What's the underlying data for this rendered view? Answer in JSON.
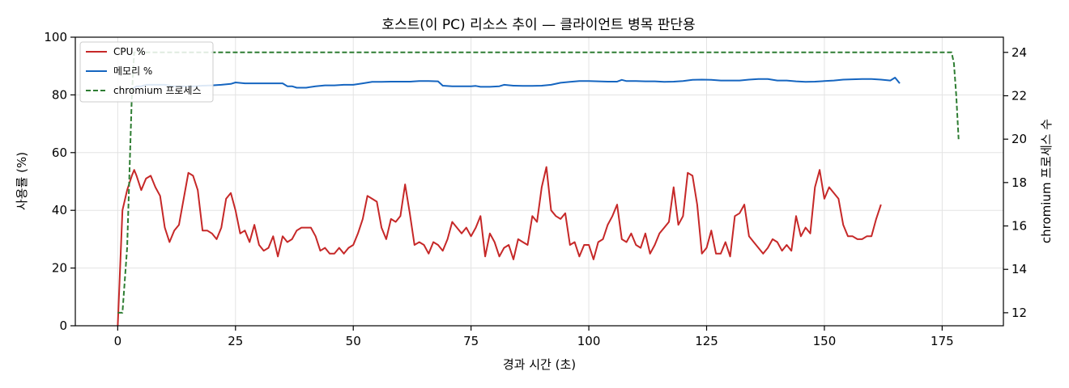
{
  "chart_data": {
    "type": "line",
    "title": "호스트(이 PC) 리소스 추이 — 클라이언트 병목 판단용",
    "xlabel": "경과 시간 (초)",
    "ylabel": "사용률 (%)",
    "ylabel_right": "chromium 프로세스 수",
    "xlim": [
      -9,
      188
    ],
    "ylim": [
      0,
      100
    ],
    "ylim_right": [
      11.4,
      24.7
    ],
    "x_ticks": [
      0,
      25,
      50,
      75,
      100,
      125,
      150,
      175
    ],
    "y_ticks": [
      0,
      20,
      40,
      60,
      80,
      100
    ],
    "y_ticks_right": [
      12,
      14,
      16,
      18,
      20,
      22,
      24
    ],
    "grid": true,
    "legend_position": "top-left",
    "colors": {
      "cpu": "#c62828",
      "memory": "#1565c0",
      "chromium": "#2e7d32"
    },
    "series": [
      {
        "name": "CPU %",
        "axis": "left",
        "style": "solid",
        "points": [
          [
            0,
            0
          ],
          [
            1,
            40
          ],
          [
            2,
            47
          ],
          [
            3,
            52
          ],
          [
            3.5,
            54
          ],
          [
            4,
            52
          ],
          [
            5,
            47
          ],
          [
            6,
            51
          ],
          [
            7,
            52
          ],
          [
            8,
            48
          ],
          [
            9,
            45
          ],
          [
            10,
            34
          ],
          [
            11,
            29
          ],
          [
            12,
            33
          ],
          [
            13,
            35
          ],
          [
            14,
            44
          ],
          [
            15,
            53
          ],
          [
            16,
            52
          ],
          [
            17,
            47
          ],
          [
            18,
            33
          ],
          [
            19,
            33
          ],
          [
            20,
            32
          ],
          [
            21,
            30
          ],
          [
            22,
            34
          ],
          [
            23,
            44
          ],
          [
            24,
            46
          ],
          [
            25,
            40
          ],
          [
            26,
            32
          ],
          [
            27,
            33
          ],
          [
            28,
            29
          ],
          [
            29,
            35
          ],
          [
            30,
            28
          ],
          [
            31,
            26
          ],
          [
            32,
            27
          ],
          [
            33,
            31
          ],
          [
            34,
            24
          ],
          [
            35,
            31
          ],
          [
            36,
            29
          ],
          [
            37,
            30
          ],
          [
            38,
            33
          ],
          [
            39,
            34
          ],
          [
            40,
            34
          ],
          [
            41,
            34
          ],
          [
            42,
            31
          ],
          [
            43,
            26
          ],
          [
            44,
            27
          ],
          [
            45,
            25
          ],
          [
            46,
            25
          ],
          [
            47,
            27
          ],
          [
            48,
            25
          ],
          [
            49,
            27
          ],
          [
            50,
            28
          ],
          [
            51,
            32
          ],
          [
            52,
            37
          ],
          [
            53,
            45
          ],
          [
            54,
            44
          ],
          [
            55,
            43
          ],
          [
            56,
            34
          ],
          [
            57,
            30
          ],
          [
            58,
            37
          ],
          [
            59,
            36
          ],
          [
            60,
            38
          ],
          [
            61,
            49
          ],
          [
            62,
            39
          ],
          [
            63,
            28
          ],
          [
            64,
            29
          ],
          [
            65,
            28
          ],
          [
            66,
            25
          ],
          [
            67,
            29
          ],
          [
            68,
            28
          ],
          [
            69,
            26
          ],
          [
            70,
            30
          ],
          [
            71,
            36
          ],
          [
            72,
            34
          ],
          [
            73,
            32
          ],
          [
            74,
            34
          ],
          [
            75,
            31
          ],
          [
            76,
            34
          ],
          [
            77,
            38
          ],
          [
            78,
            24
          ],
          [
            79,
            32
          ],
          [
            80,
            29
          ],
          [
            81,
            24
          ],
          [
            82,
            27
          ],
          [
            83,
            28
          ],
          [
            84,
            23
          ],
          [
            85,
            30
          ],
          [
            86,
            29
          ],
          [
            87,
            28
          ],
          [
            88,
            38
          ],
          [
            89,
            36
          ],
          [
            90,
            48
          ],
          [
            91,
            55
          ],
          [
            92,
            40
          ],
          [
            93,
            38
          ],
          [
            94,
            37
          ],
          [
            95,
            39
          ],
          [
            96,
            28
          ],
          [
            97,
            29
          ],
          [
            98,
            24
          ],
          [
            99,
            28
          ],
          [
            100,
            28
          ],
          [
            101,
            23
          ],
          [
            102,
            29
          ],
          [
            103,
            30
          ],
          [
            104,
            35
          ],
          [
            105,
            38
          ],
          [
            106,
            42
          ],
          [
            107,
            30
          ],
          [
            108,
            29
          ],
          [
            109,
            32
          ],
          [
            110,
            28
          ],
          [
            111,
            27
          ],
          [
            112,
            32
          ],
          [
            113,
            25
          ],
          [
            114,
            28
          ],
          [
            115,
            32
          ],
          [
            116,
            34
          ],
          [
            117,
            36
          ],
          [
            118,
            48
          ],
          [
            119,
            35
          ],
          [
            120,
            38
          ],
          [
            121,
            53
          ],
          [
            122,
            52
          ],
          [
            123,
            42
          ],
          [
            124,
            25
          ],
          [
            125,
            27
          ],
          [
            126,
            33
          ],
          [
            127,
            25
          ],
          [
            128,
            25
          ],
          [
            129,
            29
          ],
          [
            130,
            24
          ],
          [
            131,
            38
          ],
          [
            132,
            39
          ],
          [
            133,
            42
          ],
          [
            134,
            31
          ],
          [
            135,
            29
          ],
          [
            136,
            27
          ],
          [
            137,
            25
          ],
          [
            138,
            27
          ],
          [
            139,
            30
          ],
          [
            140,
            29
          ],
          [
            141,
            26
          ],
          [
            142,
            28
          ],
          [
            143,
            26
          ],
          [
            144,
            38
          ],
          [
            145,
            31
          ],
          [
            146,
            34
          ],
          [
            147,
            32
          ],
          [
            148,
            48
          ],
          [
            149,
            54
          ],
          [
            150,
            44
          ],
          [
            151,
            48
          ],
          [
            152,
            46
          ],
          [
            153,
            44
          ],
          [
            154,
            35
          ],
          [
            155,
            31
          ],
          [
            156,
            31
          ],
          [
            157,
            30
          ],
          [
            158,
            30
          ],
          [
            159,
            31
          ],
          [
            160,
            31
          ],
          [
            161,
            37
          ],
          [
            162,
            42
          ]
        ]
      },
      {
        "name": "메모리 %",
        "axis": "left",
        "style": "solid",
        "points": [
          [
            3,
            82
          ],
          [
            4,
            83
          ],
          [
            5,
            83
          ],
          [
            6,
            83.5
          ],
          [
            8,
            83.5
          ],
          [
            10,
            83.5
          ],
          [
            12,
            83
          ],
          [
            14,
            83
          ],
          [
            16,
            83
          ],
          [
            18,
            83.2
          ],
          [
            20,
            83.3
          ],
          [
            22,
            83.5
          ],
          [
            24,
            83.8
          ],
          [
            25,
            84.3
          ],
          [
            27,
            84
          ],
          [
            29,
            84
          ],
          [
            31,
            84
          ],
          [
            33,
            84
          ],
          [
            35,
            84
          ],
          [
            36,
            83
          ],
          [
            37,
            83
          ],
          [
            38,
            82.5
          ],
          [
            40,
            82.5
          ],
          [
            42,
            83
          ],
          [
            44,
            83.3
          ],
          [
            46,
            83.3
          ],
          [
            48,
            83.5
          ],
          [
            50,
            83.5
          ],
          [
            52,
            84
          ],
          [
            54,
            84.5
          ],
          [
            56,
            84.5
          ],
          [
            58,
            84.6
          ],
          [
            60,
            84.6
          ],
          [
            62,
            84.6
          ],
          [
            64,
            84.8
          ],
          [
            66,
            84.8
          ],
          [
            68,
            84.7
          ],
          [
            69,
            83.2
          ],
          [
            71,
            83
          ],
          [
            73,
            83
          ],
          [
            75,
            83
          ],
          [
            76,
            83.1
          ],
          [
            77,
            82.8
          ],
          [
            79,
            82.8
          ],
          [
            81,
            83
          ],
          [
            82,
            83.5
          ],
          [
            84,
            83.2
          ],
          [
            86,
            83.1
          ],
          [
            88,
            83.1
          ],
          [
            90,
            83.2
          ],
          [
            92,
            83.5
          ],
          [
            94,
            84.2
          ],
          [
            96,
            84.5
          ],
          [
            98,
            84.8
          ],
          [
            100,
            84.8
          ],
          [
            102,
            84.7
          ],
          [
            104,
            84.6
          ],
          [
            106,
            84.6
          ],
          [
            107,
            85.2
          ],
          [
            108,
            84.8
          ],
          [
            110,
            84.8
          ],
          [
            112,
            84.7
          ],
          [
            114,
            84.7
          ],
          [
            116,
            84.5
          ],
          [
            118,
            84.6
          ],
          [
            120,
            84.8
          ],
          [
            122,
            85.2
          ],
          [
            124,
            85.3
          ],
          [
            126,
            85.2
          ],
          [
            128,
            85
          ],
          [
            130,
            85
          ],
          [
            132,
            85
          ],
          [
            134,
            85.3
          ],
          [
            136,
            85.5
          ],
          [
            138,
            85.5
          ],
          [
            140,
            85
          ],
          [
            142,
            85
          ],
          [
            144,
            84.7
          ],
          [
            146,
            84.5
          ],
          [
            148,
            84.6
          ],
          [
            150,
            84.8
          ],
          [
            152,
            85
          ],
          [
            154,
            85.3
          ],
          [
            156,
            85.4
          ],
          [
            158,
            85.5
          ],
          [
            160,
            85.5
          ],
          [
            162,
            85.3
          ],
          [
            164,
            85
          ],
          [
            165,
            86
          ],
          [
            166,
            84
          ]
        ]
      },
      {
        "name": "chromium 프로세스",
        "axis": "right",
        "style": "dashed",
        "points": [
          [
            0,
            12
          ],
          [
            1,
            12
          ],
          [
            2,
            15
          ],
          [
            3,
            22
          ],
          [
            3.5,
            24
          ],
          [
            4,
            24
          ],
          [
            30,
            24
          ],
          [
            60,
            24
          ],
          [
            90,
            24
          ],
          [
            120,
            24
          ],
          [
            150,
            24
          ],
          [
            177,
            24
          ],
          [
            177.5,
            23.5
          ],
          [
            178,
            22
          ],
          [
            178.5,
            20
          ]
        ]
      }
    ]
  }
}
